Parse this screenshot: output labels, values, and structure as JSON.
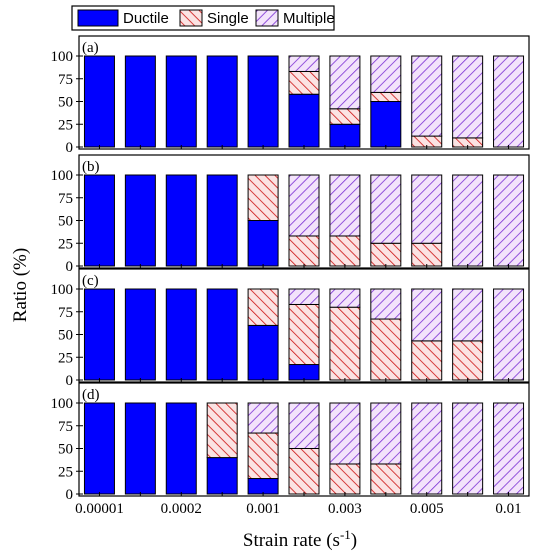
{
  "chart_data": {
    "type": "bar",
    "stacked": true,
    "xlabel": "Strain rate (s",
    "xlabel_superscript": "-1",
    "xlabel_suffix": ")",
    "ylabel": "Ratio (%)",
    "ylim": [
      0,
      100
    ],
    "yticks": [
      "0",
      "25",
      "50",
      "75",
      "100"
    ],
    "x_tick_labels": [
      "0.00001",
      "0.0002",
      "0.001",
      "0.003",
      "0.005",
      "0.01"
    ],
    "legend": {
      "placement": "top-left",
      "items": [
        {
          "name": "Ductile",
          "pattern": "solid"
        },
        {
          "name": "Single",
          "pattern": "hatch"
        },
        {
          "name": "Multiple",
          "pattern": "hatch"
        }
      ]
    },
    "colors": {
      "ductile": "#0000ff",
      "single_stripe": "#cc1111",
      "single_bg": "#fbe3e3",
      "multiple_stripe": "#7b2fd4",
      "multiple_bg": "#f3e3fb"
    },
    "panels": [
      {
        "label": "(a)",
        "series": [
          {
            "name": "Ductile",
            "values": [
              100,
              100,
              100,
              100,
              100,
              58,
              25,
              50,
              0,
              0,
              0
            ]
          },
          {
            "name": "Single",
            "values": [
              0,
              0,
              0,
              0,
              0,
              25,
              17,
              10,
              12,
              10,
              0
            ]
          },
          {
            "name": "Multiple",
            "values": [
              0,
              0,
              0,
              0,
              0,
              17,
              58,
              40,
              88,
              90,
              100
            ]
          }
        ]
      },
      {
        "label": "(b)",
        "series": [
          {
            "name": "Ductile",
            "values": [
              100,
              100,
              100,
              100,
              50,
              0,
              0,
              0,
              0,
              0,
              0
            ]
          },
          {
            "name": "Single",
            "values": [
              0,
              0,
              0,
              0,
              50,
              33,
              33,
              25,
              25,
              0,
              0
            ]
          },
          {
            "name": "Multiple",
            "values": [
              0,
              0,
              0,
              0,
              0,
              67,
              67,
              75,
              75,
              100,
              100
            ]
          }
        ]
      },
      {
        "label": "(c)",
        "series": [
          {
            "name": "Ductile",
            "values": [
              100,
              100,
              100,
              100,
              60,
              17,
              0,
              0,
              0,
              0,
              0
            ]
          },
          {
            "name": "Single",
            "values": [
              0,
              0,
              0,
              0,
              40,
              66,
              80,
              67,
              43,
              43,
              0
            ]
          },
          {
            "name": "Multiple",
            "values": [
              0,
              0,
              0,
              0,
              0,
              17,
              20,
              33,
              57,
              57,
              100
            ]
          }
        ]
      },
      {
        "label": "(d)",
        "series": [
          {
            "name": "Ductile",
            "values": [
              100,
              100,
              100,
              40,
              17,
              0,
              0,
              0,
              0,
              0,
              0
            ]
          },
          {
            "name": "Single",
            "values": [
              0,
              0,
              0,
              60,
              50,
              50,
              33,
              33,
              0,
              0,
              0
            ]
          },
          {
            "name": "Multiple",
            "values": [
              0,
              0,
              0,
              0,
              33,
              50,
              67,
              67,
              100,
              100,
              100
            ]
          }
        ]
      }
    ]
  }
}
